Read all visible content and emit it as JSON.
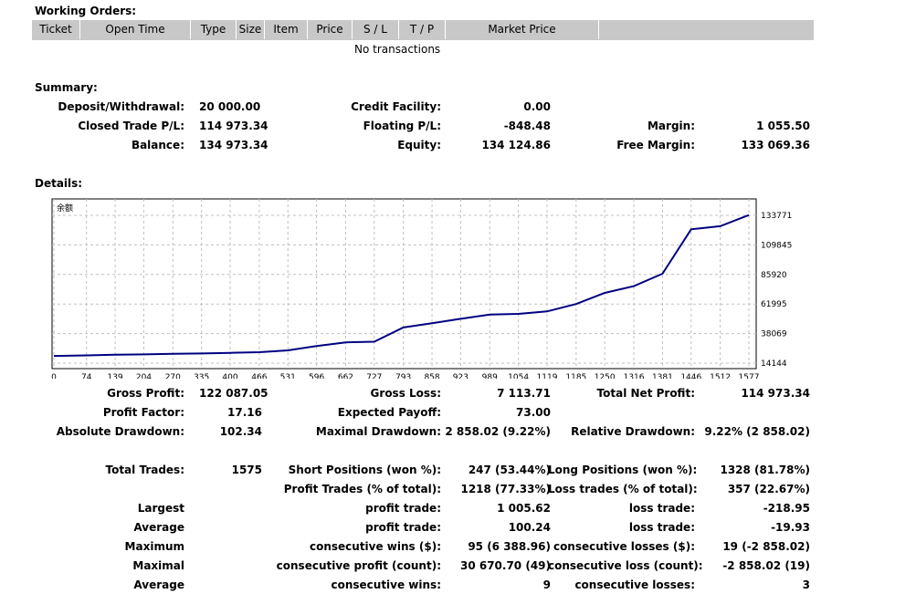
{
  "working_orders": {
    "title": "Working Orders:",
    "columns": [
      "Ticket",
      "Open Time",
      "Type",
      "Size",
      "Item",
      "Price",
      "S / L",
      "T / P",
      "Market Price"
    ],
    "empty_text": "No transactions"
  },
  "summary": {
    "title": "Summary:",
    "deposit_label": "Deposit/Withdrawal:",
    "deposit_value": "20 000.00",
    "credit_label": "Credit Facility:",
    "credit_value": "0.00",
    "closed_pl_label": "Closed Trade P/L:",
    "closed_pl_value": "114 973.34",
    "floating_pl_label": "Floating P/L:",
    "floating_pl_value": "-848.48",
    "margin_label": "Margin:",
    "margin_value": "1 055.50",
    "balance_label": "Balance:",
    "balance_value": "134 973.34",
    "equity_label": "Equity:",
    "equity_value": "134 124.86",
    "free_margin_label": "Free Margin:",
    "free_margin_value": "133 069.36"
  },
  "details": {
    "title": "Details:"
  },
  "chart_data": {
    "type": "line",
    "title": "余额",
    "x": [
      0,
      74,
      139,
      204,
      270,
      335,
      400,
      466,
      531,
      596,
      662,
      727,
      793,
      858,
      923,
      989,
      1054,
      1119,
      1185,
      1250,
      1316,
      1381,
      1446,
      1512,
      1577
    ],
    "x_ticks": [
      "0",
      "74",
      "139",
      "204",
      "270",
      "335",
      "400",
      "466",
      "531",
      "596",
      "662",
      "727",
      "793",
      "858",
      "923",
      "989",
      "1054",
      "1119",
      "1185",
      "1250",
      "1316",
      "1381",
      "1446",
      "1512",
      "1577"
    ],
    "y_ticks": [
      "133771",
      "109845",
      "85920",
      "61995",
      "38069",
      "14144"
    ],
    "ylim": [
      14144,
      133771
    ],
    "series": [
      {
        "color": "#00007f",
        "values": [
          20000,
          20400,
          21000,
          21200,
          21700,
          22000,
          22500,
          23000,
          24500,
          28000,
          31000,
          31500,
          43000,
          46500,
          50000,
          53500,
          54000,
          56000,
          62000,
          71000,
          76500,
          86500,
          122500,
          125000,
          134000
        ]
      }
    ],
    "grid": true
  },
  "stats": {
    "gross_profit_label": "Gross Profit:",
    "gross_profit_value": "122 087.05",
    "gross_loss_label": "Gross Loss:",
    "gross_loss_value": "7 113.71",
    "total_net_profit_label": "Total Net Profit:",
    "total_net_profit_value": "114 973.34",
    "profit_factor_label": "Profit Factor:",
    "profit_factor_value": "17.16",
    "expected_payoff_label": "Expected Payoff:",
    "expected_payoff_value": "73.00",
    "abs_dd_label": "Absolute Drawdown:",
    "abs_dd_value": "102.34",
    "max_dd_label": "Maximal Drawdown:",
    "max_dd_value": "2 858.02 (9.22%)",
    "rel_dd_label": "Relative Drawdown:",
    "rel_dd_value": "9.22% (2 858.02)",
    "total_trades_label": "Total Trades:",
    "total_trades_value": "1575",
    "short_label": "Short Positions (won %):",
    "short_value": "247 (53.44%)",
    "long_label": "Long Positions (won %):",
    "long_value": "1328 (81.78%)",
    "profit_trades_label": "Profit Trades (% of total):",
    "profit_trades_value": "1218 (77.33%)",
    "loss_trades_label": "Loss trades (% of total):",
    "loss_trades_value": "357 (22.67%)",
    "largest_label": "Largest",
    "largest_profit_label": "profit trade:",
    "largest_profit_value": "1 005.62",
    "largest_loss_label": "loss trade:",
    "largest_loss_value": "-218.95",
    "average_label": "Average",
    "avg_profit_label": "profit trade:",
    "avg_profit_value": "100.24",
    "avg_loss_label": "loss trade:",
    "avg_loss_value": "-19.93",
    "maximum_label": "Maximum",
    "max_cons_wins_label": "consecutive wins ($):",
    "max_cons_wins_value": "95 (6 388.96)",
    "max_cons_losses_label": "consecutive losses ($):",
    "max_cons_losses_value": "19 (-2 858.02)",
    "maximal_label": "Maximal",
    "maximal_profit_label": "consecutive profit (count):",
    "maximal_profit_value": "30 670.70 (49)",
    "maximal_loss_label": "consecutive loss (count):",
    "maximal_loss_value": "-2 858.02 (19)",
    "average2_label": "Average",
    "avg_cons_wins_label": "consecutive wins:",
    "avg_cons_wins_value": "9",
    "avg_cons_losses_label": "consecutive losses:",
    "avg_cons_losses_value": "3"
  }
}
